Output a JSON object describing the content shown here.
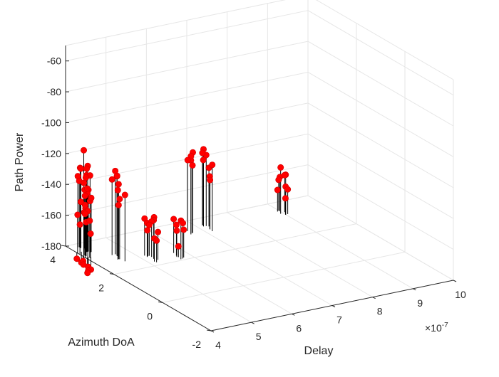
{
  "chart_data": {
    "type": "scatter",
    "style": "stem3",
    "marker_color": "#ff0000",
    "stem_color": "#000000",
    "xlabel": "Delay",
    "x_exponent_label": "×10",
    "x_exponent_power": "-7",
    "ylabel": "Azimuth DoA",
    "zlabel": "Path Power",
    "xlim": [
      4,
      10
    ],
    "ylim": [
      -2,
      4
    ],
    "zlim": [
      -180,
      -50
    ],
    "x_ticks": [
      "4",
      "5",
      "6",
      "7",
      "8",
      "9",
      "10"
    ],
    "y_ticks": [
      "-2",
      "0",
      "2",
      "4"
    ],
    "z_ticks": [
      "-180",
      "-160",
      "-140",
      "-120",
      "-100",
      "-80",
      "-60"
    ],
    "grid": true,
    "clusters": [
      {
        "x": 4.05,
        "y": 3.3,
        "z": [
          -112,
          -148,
          -152,
          -155,
          -158,
          -161,
          -164,
          -150,
          -156,
          -153,
          -185,
          -187,
          -183,
          -188,
          -186,
          -189,
          -184,
          -190
        ]
      },
      {
        "x": 4.25,
        "y": 3.6,
        "z": [
          -125,
          -128,
          -131,
          -134,
          -137,
          -140,
          -143,
          -146,
          -126,
          -130,
          -136,
          -142,
          -148,
          -151,
          -129,
          -133,
          -139,
          -145,
          -150
        ]
      },
      {
        "x": 4.6,
        "y": 2.8,
        "z": [
          -126,
          -129,
          -133,
          -137,
          -141,
          -145,
          -128,
          -131,
          -135
        ]
      },
      {
        "x": 5.2,
        "y": 2.4,
        "z": [
          -153,
          -156,
          -159,
          -155,
          -158,
          -162,
          -165,
          -157,
          -160,
          -163,
          -166
        ]
      },
      {
        "x": 5.75,
        "y": 2.3,
        "z": [
          -155,
          -158,
          -162,
          -157,
          -160,
          -163,
          -173
        ]
      },
      {
        "x": 6.7,
        "y": 3.5,
        "z": [
          -128,
          -132,
          -136,
          -130,
          -134
        ]
      },
      {
        "x": 7.2,
        "y": 3.4,
        "z": [
          -130,
          -134,
          -138,
          -142,
          -146,
          -133,
          -137,
          -148
        ]
      },
      {
        "x": 9.0,
        "y": 3.3,
        "z": [
          -150,
          -154,
          -158,
          -162,
          -166,
          -170,
          -156,
          -160,
          -164
        ]
      }
    ]
  }
}
